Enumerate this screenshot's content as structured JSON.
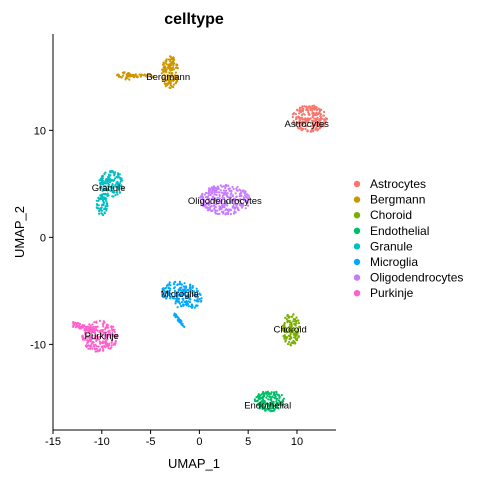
{
  "chart_data": {
    "type": "scatter",
    "title": "celltype",
    "xlabel": "UMAP_1",
    "ylabel": "UMAP_2",
    "xlim": [
      -15,
      14
    ],
    "ylim": [
      -18,
      19
    ],
    "xticks": [
      -15,
      -10,
      -5,
      0,
      5,
      10
    ],
    "yticks": [
      -10,
      0,
      10
    ],
    "legend_position": "right",
    "grid": false,
    "series": [
      {
        "name": "Astrocytes",
        "color": "#F8766D",
        "label": "Astrocytes",
        "shape": "blob",
        "center": [
          11.3,
          11.1
        ],
        "radius": [
          1.8,
          1.25
        ],
        "label_pos": [
          11.0,
          10.6
        ],
        "n": 230
      },
      {
        "name": "Bergmann",
        "color": "#CD9600",
        "label": "Bergmann",
        "shape": "bergmann",
        "center": [
          -3.0,
          15.8
        ],
        "label_pos": [
          -3.2,
          15.0
        ],
        "n": 200
      },
      {
        "name": "Choroid",
        "color": "#7CAE00",
        "label": "Choroid",
        "shape": "blob",
        "center": [
          9.4,
          -8.6
        ],
        "radius": [
          0.9,
          1.5
        ],
        "label_pos": [
          9.3,
          -8.6
        ],
        "n": 130
      },
      {
        "name": "Endothelial",
        "color": "#00BE67",
        "label": "Endothelial",
        "shape": "blob",
        "center": [
          7.2,
          -15.3
        ],
        "radius": [
          1.55,
          0.95
        ],
        "label_pos": [
          7.0,
          -15.7
        ],
        "n": 170
      },
      {
        "name": "Granule",
        "color": "#00BFC4",
        "label": "Granule",
        "shape": "granule",
        "center": [
          -9.3,
          4.5
        ],
        "label_pos": [
          -9.3,
          4.6
        ],
        "n": 210
      },
      {
        "name": "Microglia",
        "color": "#00A9FF",
        "label": "Microglia",
        "shape": "microglia",
        "center": [
          -2.2,
          -5.5
        ],
        "label_pos": [
          -2.0,
          -5.3
        ],
        "n": 210
      },
      {
        "name": "Oligodendrocytes",
        "color": "#C77CFF",
        "label": "Oligodendrocytes",
        "shape": "blob",
        "center": [
          2.6,
          3.5
        ],
        "radius": [
          2.6,
          1.4
        ],
        "label_pos": [
          2.6,
          3.4
        ],
        "n": 300
      },
      {
        "name": "Purkinje",
        "color": "#FF61CC",
        "label": "Purkinje",
        "shape": "purkinje",
        "center": [
          -10.0,
          -9.2
        ],
        "label_pos": [
          -10.0,
          -9.2
        ],
        "n": 280
      }
    ]
  }
}
